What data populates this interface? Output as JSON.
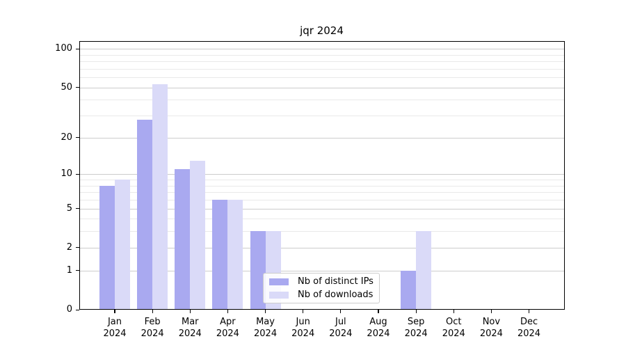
{
  "title": "jqr 2024",
  "chart_data": {
    "type": "bar",
    "title": "jqr 2024",
    "categories": [
      "Jan 2024",
      "Feb 2024",
      "Mar 2024",
      "Apr 2024",
      "May 2024",
      "Jun 2024",
      "Jul 2024",
      "Aug 2024",
      "Sep 2024",
      "Oct 2024",
      "Nov 2024",
      "Dec 2024"
    ],
    "series": [
      {
        "name": "Nb of distinct IPs",
        "color": "#a9a9f0",
        "values": [
          8,
          28,
          11,
          6,
          3,
          0,
          0,
          0,
          1,
          0,
          0,
          0
        ]
      },
      {
        "name": "Nb of downloads",
        "color": "#dadaf8",
        "values": [
          9,
          53,
          13,
          6,
          3,
          0,
          0,
          0,
          3,
          0,
          0,
          0
        ]
      }
    ],
    "xlabel": "",
    "ylabel": "",
    "yscale": "log1p",
    "ylim": [
      0,
      115
    ],
    "y_major_ticks": [
      0,
      1,
      2,
      5,
      10,
      20,
      50,
      100
    ],
    "y_minor_ticks": [
      3,
      4,
      6,
      7,
      8,
      9,
      30,
      40,
      60,
      70,
      80,
      90
    ],
    "grid": "horizontal",
    "legend_position": "lower-center",
    "colors": {
      "major_grid": "#cccccc",
      "minor_grid": "#e9e9e9",
      "axis": "#000000",
      "text": "#000000",
      "legend_border": "#cccccc",
      "background": "#ffffff"
    }
  }
}
